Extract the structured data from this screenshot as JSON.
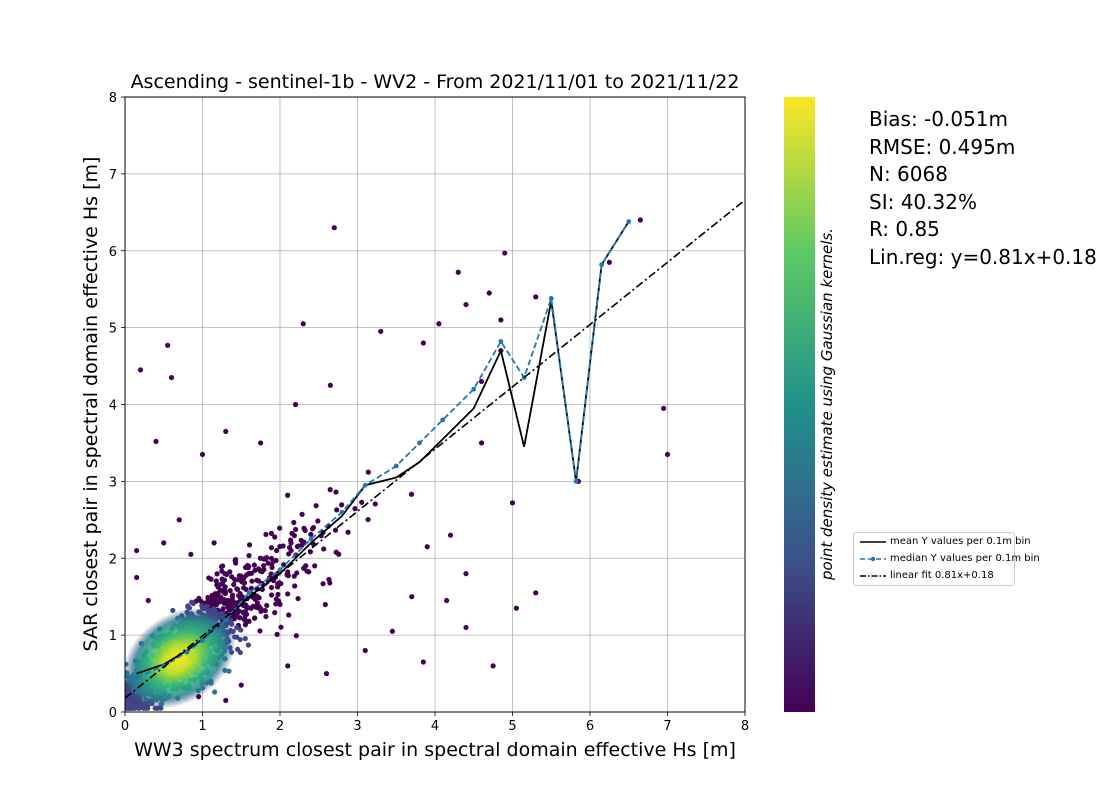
{
  "chart_data": {
    "type": "scatter",
    "title": "Ascending - sentinel-1b - WV2 - From 2021/11/01 to 2021/11/22",
    "xlabel": "WW3 spectrum closest pair in spectral domain effective Hs [m]",
    "ylabel": "SAR closest pair in spectral domain effective Hs [m]",
    "xlim": [
      0,
      8
    ],
    "ylim": [
      0,
      8
    ],
    "xticks": [
      "0",
      "1",
      "2",
      "3",
      "4",
      "5",
      "6",
      "7",
      "8"
    ],
    "yticks": [
      "0",
      "1",
      "2",
      "3",
      "4",
      "5",
      "6",
      "7",
      "8"
    ],
    "grid": true,
    "colorbar_label": "point density estimate using Gaussian kernels.",
    "colormap": [
      "#440154",
      "#3b528b",
      "#21918c",
      "#5ec962",
      "#fde725"
    ],
    "n_points": 6068,
    "outlier_points": [
      [
        2.7,
        6.3
      ],
      [
        0.55,
        4.77
      ],
      [
        0.6,
        4.35
      ],
      [
        0.2,
        4.45
      ],
      [
        0.4,
        3.52
      ],
      [
        1.3,
        3.65
      ],
      [
        1.0,
        3.35
      ],
      [
        2.3,
        5.05
      ],
      [
        4.3,
        5.72
      ],
      [
        4.9,
        5.97
      ],
      [
        5.3,
        5.4
      ],
      [
        6.25,
        5.85
      ],
      [
        6.65,
        6.4
      ],
      [
        6.95,
        3.95
      ],
      [
        7.0,
        3.35
      ],
      [
        5.85,
        3.0
      ],
      [
        5.0,
        2.72
      ],
      [
        5.3,
        1.55
      ],
      [
        5.05,
        1.35
      ],
      [
        4.75,
        0.6
      ],
      [
        3.85,
        0.65
      ],
      [
        3.1,
        0.8
      ],
      [
        4.4,
        1.1
      ],
      [
        2.65,
        4.25
      ],
      [
        3.3,
        4.95
      ],
      [
        3.85,
        4.8
      ],
      [
        4.05,
        5.05
      ],
      [
        4.4,
        5.3
      ],
      [
        4.7,
        5.45
      ],
      [
        4.85,
        5.1
      ],
      [
        2.2,
        4.0
      ],
      [
        1.75,
        3.5
      ],
      [
        2.0,
        1.4
      ],
      [
        1.15,
        2.2
      ],
      [
        0.7,
        2.5
      ],
      [
        0.85,
        2.05
      ],
      [
        0.5,
        2.2
      ],
      [
        0.15,
        2.1
      ],
      [
        3.45,
        1.05
      ],
      [
        3.7,
        1.5
      ],
      [
        4.15,
        1.45
      ],
      [
        4.2,
        2.3
      ],
      [
        4.4,
        1.8
      ],
      [
        3.9,
        2.15
      ],
      [
        4.6,
        3.5
      ],
      [
        4.85,
        4.7
      ],
      [
        4.6,
        4.3
      ],
      [
        0.15,
        1.75
      ],
      [
        0.3,
        1.45
      ],
      [
        2.6,
        0.5
      ],
      [
        2.1,
        0.6
      ],
      [
        1.5,
        0.35
      ],
      [
        1.3,
        0.15
      ],
      [
        0.95,
        0.2
      ]
    ],
    "series": [
      {
        "name": "mean Y values per 0.1m bin",
        "style": "solid",
        "color": "#000000",
        "x": [
          0.15,
          0.5,
          0.8,
          1.0,
          1.3,
          1.6,
          2.0,
          2.4,
          2.8,
          3.1,
          3.5,
          3.8,
          4.1,
          4.5,
          4.85,
          5.15,
          5.5,
          5.82,
          6.15,
          6.5
        ],
        "y": [
          0.5,
          0.62,
          0.8,
          0.95,
          1.2,
          1.5,
          1.8,
          2.2,
          2.55,
          2.95,
          3.05,
          3.25,
          3.55,
          3.95,
          4.7,
          3.45,
          5.35,
          3.0,
          5.82,
          6.38
        ]
      },
      {
        "name": "median Y values per 0.1m bin",
        "style": "dashed",
        "color": "#1f77b4",
        "x": [
          0.15,
          0.5,
          0.8,
          1.0,
          1.3,
          1.6,
          2.0,
          2.4,
          2.8,
          3.1,
          3.5,
          3.8,
          4.1,
          4.5,
          4.85,
          5.15,
          5.5,
          5.82,
          6.15,
          6.5
        ],
        "y": [
          0.45,
          0.6,
          0.78,
          0.93,
          1.2,
          1.55,
          1.85,
          2.25,
          2.6,
          2.95,
          3.2,
          3.5,
          3.8,
          4.2,
          4.82,
          4.35,
          5.38,
          3.0,
          5.82,
          6.38
        ]
      },
      {
        "name": "linear fit 0.81x+0.18",
        "style": "dashdot",
        "color": "#000000",
        "slope": 0.81,
        "intercept": 0.18
      }
    ],
    "stats": {
      "bias": "Bias: -0.051m",
      "rmse": "RMSE: 0.495m",
      "n": "N: 6068",
      "si": "SI: 40.32%",
      "r": "R: 0.85",
      "linreg": "Lin.reg: y=0.81x+0.18"
    }
  }
}
